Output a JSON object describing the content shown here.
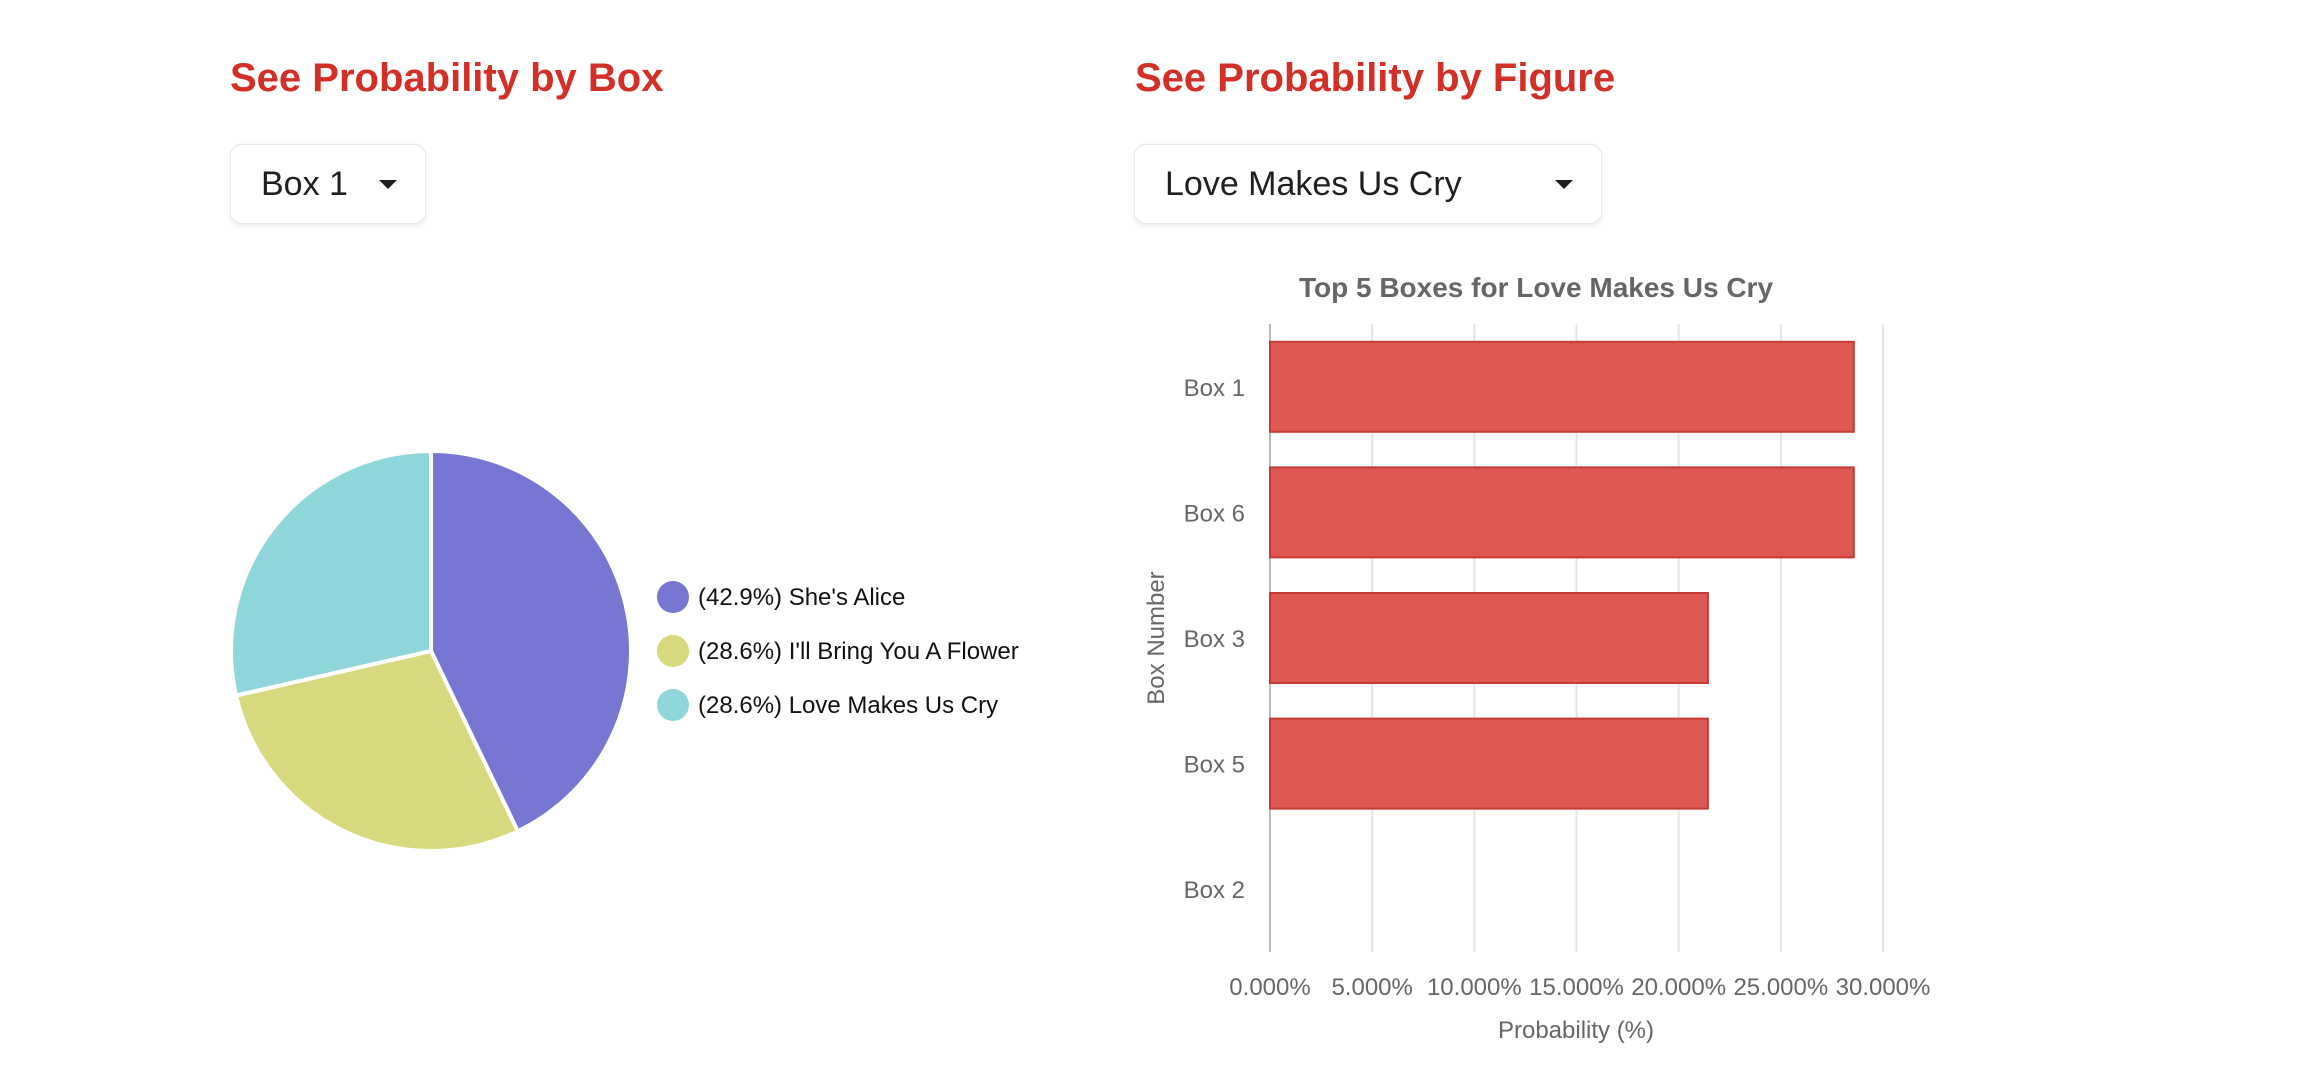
{
  "left_panel": {
    "heading": "See Probability by Box",
    "dropdown_value": "Box 1"
  },
  "right_panel": {
    "heading": "See Probability by Figure",
    "dropdown_value": "Love Makes Us Cry"
  },
  "chart_data": [
    {
      "type": "pie",
      "slices": [
        {
          "label": "(42.9%) She's Alice",
          "value": 42.9,
          "color": "#7777d3"
        },
        {
          "label": "(28.6%) I'll Bring You A Flower",
          "value": 28.6,
          "color": "#d8d87e"
        },
        {
          "label": "(28.6%) Love Makes Us Cry",
          "value": 28.6,
          "color": "#8fd7da"
        }
      ],
      "legend_position": "right"
    },
    {
      "type": "bar",
      "orientation": "horizontal",
      "title": "Top 5 Boxes for Love Makes Us Cry",
      "categories": [
        "Box 1",
        "Box 6",
        "Box 3",
        "Box 5",
        "Box 2"
      ],
      "values": [
        28.57,
        28.57,
        21.43,
        21.43,
        0
      ],
      "xlabel": "Probability (%)",
      "ylabel": "Box Number",
      "xlim": [
        0,
        30
      ],
      "xticks": [
        "0.000%",
        "5.000%",
        "10.000%",
        "15.000%",
        "20.000%",
        "25.000%",
        "30.000%"
      ],
      "grid": "vertical",
      "bar_color": "#de5954"
    }
  ]
}
